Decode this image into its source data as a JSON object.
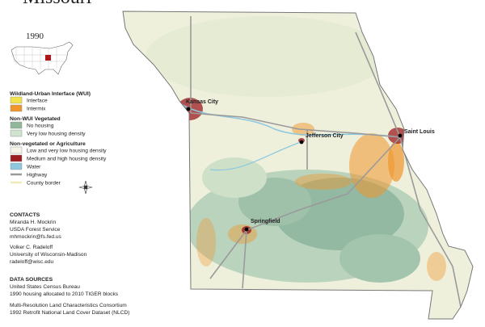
{
  "header": {
    "title": "Missouri",
    "subtitle": "1990"
  },
  "legend": {
    "groups": [
      {
        "title": "Wildland-Urban Interface (WUI)",
        "items": [
          {
            "label": "Interface",
            "color": "#f2e34a"
          },
          {
            "label": "Intermix",
            "color": "#f0962c"
          }
        ]
      },
      {
        "title": "Non-WUI Vegetated",
        "items": [
          {
            "label": "No housing",
            "color": "#8fb79a"
          },
          {
            "label": "Very low housing density",
            "color": "#cfe3cf"
          }
        ]
      },
      {
        "title": "Non-vegetated or Agriculture",
        "items": [
          {
            "label": "Low and very low housing density",
            "color": "#f7f3e6"
          },
          {
            "label": "Medium and high housing density",
            "color": "#9c1c20"
          },
          {
            "label": "Water",
            "color": "#8ec8df"
          },
          {
            "label": "Highway",
            "color": "#9a9a9a",
            "symbol": "line"
          },
          {
            "label": "County border",
            "color": "#f0e9b8",
            "symbol": "line"
          }
        ]
      }
    ]
  },
  "contacts": {
    "title": "CONTACTS",
    "people": [
      [
        "Miranda H. Mockrin",
        "USDA Forest Service",
        "mhmockrin@fs.fed.us"
      ],
      [
        "Volker C. Radeloff",
        "University of Wisconsin-Madison",
        "radeloff@wisc.edu"
      ]
    ]
  },
  "sources": {
    "title": "DATA SOURCES",
    "items": [
      [
        "United States Census Bureau",
        "1990 housing allocated to 2010 TIGER blocks"
      ],
      [
        "Multi-Resolution Land Characteristics Consortium",
        "1992 Retrofit National Land Cover Dataset (NLCD)"
      ]
    ]
  },
  "cities": [
    {
      "label": "Kansas City"
    },
    {
      "label": "Jefferson City"
    },
    {
      "label": "Saint Louis"
    },
    {
      "label": "Springfield"
    }
  ]
}
